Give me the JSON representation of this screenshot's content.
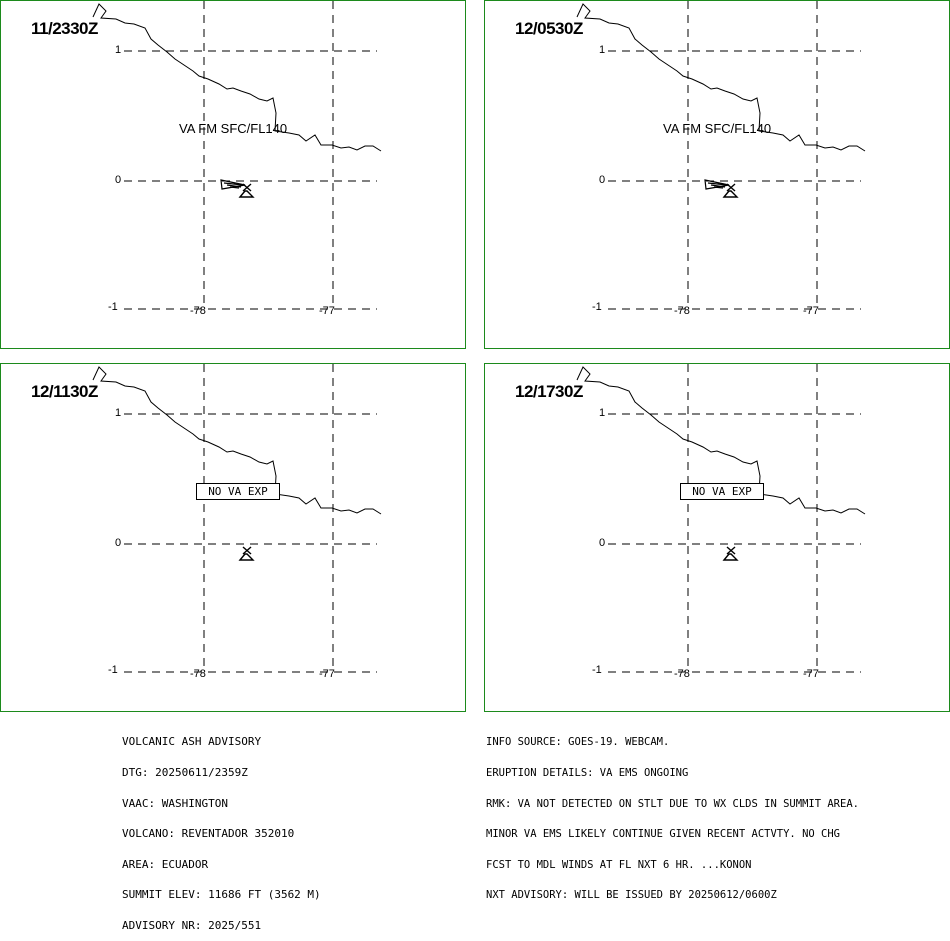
{
  "panels": [
    {
      "time": "11/2330Z",
      "label": "VA FM SFC/FL140",
      "type": "ash"
    },
    {
      "time": "12/0530Z",
      "label": "VA FM SFC/FL140",
      "type": "ash"
    },
    {
      "time": "12/1130Z",
      "label": "NO VA EXP",
      "type": "none"
    },
    {
      "time": "12/1730Z",
      "label": "NO VA EXP",
      "type": "none"
    }
  ],
  "axes": {
    "lat_labels": [
      "1",
      "0",
      "-1"
    ],
    "lon_labels": [
      "-78",
      "-77"
    ]
  },
  "advisory": {
    "left_lines": [
      "VOLCANIC ASH ADVISORY",
      "DTG: 20250611/2359Z",
      "VAAC: WASHINGTON",
      "VOLCANO: REVENTADOR 352010",
      "AREA: ECUADOR",
      "SUMMIT ELEV: 11686 FT (3562 M)",
      "ADVISORY NR: 2025/551"
    ],
    "right_lines": [
      "INFO SOURCE: GOES-19. WEBCAM.",
      "ERUPTION DETAILS: VA EMS ONGOING",
      "RMK: VA NOT DETECTED ON STLT DUE TO WX CLDS IN SUMMIT AREA.",
      "MINOR VA EMS LIKELY CONTINUE GIVEN RECENT ACTVTY. NO CHG",
      "FCST TO MDL WINDS AT FL NXT 6 HR. ...KONON",
      "NXT ADVISORY: WILL BE ISSUED BY 20250612/0600Z"
    ]
  },
  "colors": {
    "border": "#1c8a1c",
    "ink": "#000000"
  },
  "icons": {
    "volcano": "volcano-icon",
    "ash_area": "ash-polygon"
  }
}
